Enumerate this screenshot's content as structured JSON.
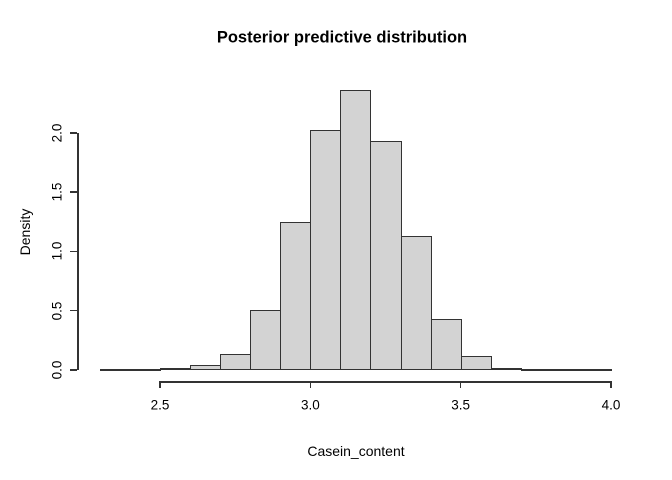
{
  "chart_data": {
    "type": "histogram",
    "title": "Posterior predictive distribution",
    "xlabel": "Casein_content",
    "ylabel": "Density",
    "xlim": [
      2.3,
      4.0
    ],
    "ylim": [
      0,
      2.36
    ],
    "grid": false,
    "legend": null,
    "bin_width": 0.1,
    "x_ticks": [
      2.5,
      3.0,
      3.5,
      4.0
    ],
    "x_tick_labels": [
      "2.5",
      "3.0",
      "3.5",
      "4.0"
    ],
    "y_ticks": [
      0.0,
      0.5,
      1.0,
      1.5,
      2.0
    ],
    "y_tick_labels": [
      "0.0",
      "0.5",
      "1.0",
      "1.5",
      "2.0"
    ],
    "bins": [
      {
        "x0": 2.3,
        "x1": 2.4,
        "density": 0.005
      },
      {
        "x0": 2.4,
        "x1": 2.5,
        "density": 0.01
      },
      {
        "x0": 2.5,
        "x1": 2.6,
        "density": 0.02
      },
      {
        "x0": 2.6,
        "x1": 2.7,
        "density": 0.045
      },
      {
        "x0": 2.7,
        "x1": 2.8,
        "density": 0.135
      },
      {
        "x0": 2.8,
        "x1": 2.9,
        "density": 0.51
      },
      {
        "x0": 2.9,
        "x1": 3.0,
        "density": 1.25
      },
      {
        "x0": 3.0,
        "x1": 3.1,
        "density": 2.02
      },
      {
        "x0": 3.1,
        "x1": 3.2,
        "density": 2.36
      },
      {
        "x0": 3.2,
        "x1": 3.3,
        "density": 1.93
      },
      {
        "x0": 3.3,
        "x1": 3.4,
        "density": 1.13
      },
      {
        "x0": 3.4,
        "x1": 3.5,
        "density": 0.43
      },
      {
        "x0": 3.5,
        "x1": 3.6,
        "density": 0.12
      },
      {
        "x0": 3.6,
        "x1": 3.7,
        "density": 0.02
      },
      {
        "x0": 3.7,
        "x1": 3.8,
        "density": 0.005
      },
      {
        "x0": 3.8,
        "x1": 3.9,
        "density": 0.003
      },
      {
        "x0": 3.9,
        "x1": 4.0,
        "density": 0.002
      }
    ],
    "colors": {
      "bar_fill": "#d3d3d3",
      "bar_border": "#333333",
      "axis": "#333333",
      "text": "#000000",
      "background": "#ffffff"
    }
  }
}
